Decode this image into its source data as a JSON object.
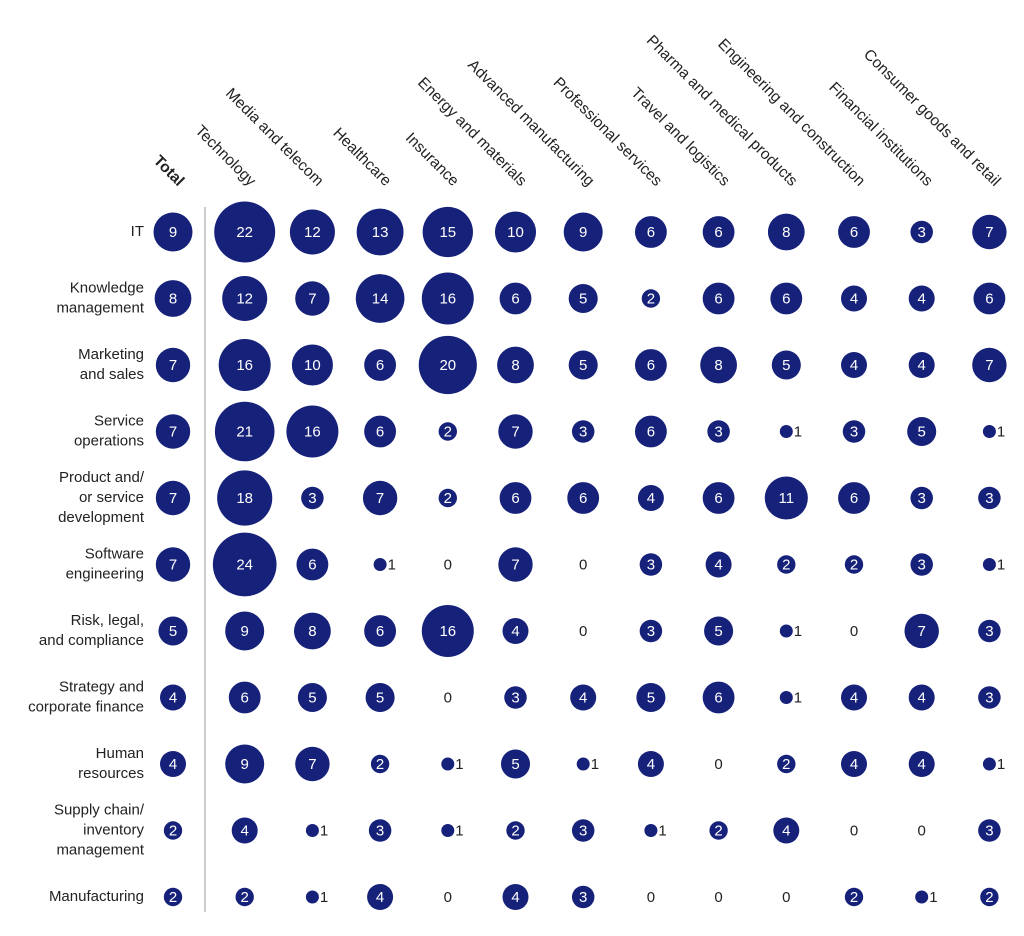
{
  "chart_data": {
    "type": "bubble-matrix",
    "color": "#16217a",
    "columns": [
      "Total",
      "Technology",
      "Media and telecom",
      "Healthcare",
      "Insurance",
      "Energy and materials",
      "Advanced manufacturing",
      "Professional services",
      "Travel and logistics",
      "Pharma and medical products",
      "Engineering and construction",
      "Financial institutions",
      "Consumer goods and retail"
    ],
    "categories": [
      [
        "IT"
      ],
      [
        "Knowledge",
        "management"
      ],
      [
        "Marketing",
        "and sales"
      ],
      [
        "Service",
        "operations"
      ],
      [
        "Product and/",
        "or service",
        "development"
      ],
      [
        "Software",
        "engineering"
      ],
      [
        "Risk, legal,",
        "and compliance"
      ],
      [
        "Strategy and",
        "corporate finance"
      ],
      [
        "Human",
        "resources"
      ],
      [
        "Supply chain/",
        "inventory",
        "management"
      ],
      [
        "Manufacturing"
      ]
    ],
    "values": [
      [
        9,
        22,
        12,
        13,
        15,
        10,
        9,
        6,
        6,
        8,
        6,
        3,
        7
      ],
      [
        8,
        12,
        7,
        14,
        16,
        6,
        5,
        2,
        6,
        6,
        4,
        4,
        6
      ],
      [
        7,
        16,
        10,
        6,
        20,
        8,
        5,
        6,
        8,
        5,
        4,
        4,
        7
      ],
      [
        7,
        21,
        16,
        6,
        2,
        7,
        3,
        6,
        3,
        1,
        3,
        5,
        1
      ],
      [
        7,
        18,
        3,
        7,
        2,
        6,
        6,
        4,
        6,
        11,
        6,
        3,
        3
      ],
      [
        7,
        24,
        6,
        1,
        0,
        7,
        0,
        3,
        4,
        2,
        2,
        3,
        1
      ],
      [
        5,
        9,
        8,
        6,
        16,
        4,
        0,
        3,
        5,
        1,
        0,
        7,
        3
      ],
      [
        4,
        6,
        5,
        5,
        0,
        3,
        4,
        5,
        6,
        1,
        4,
        4,
        3
      ],
      [
        4,
        9,
        7,
        2,
        1,
        5,
        1,
        4,
        0,
        2,
        4,
        4,
        1
      ],
      [
        2,
        4,
        1,
        3,
        1,
        2,
        3,
        1,
        2,
        4,
        0,
        0,
        3
      ],
      [
        2,
        2,
        1,
        4,
        0,
        4,
        3,
        0,
        0,
        0,
        2,
        1,
        2
      ]
    ]
  }
}
